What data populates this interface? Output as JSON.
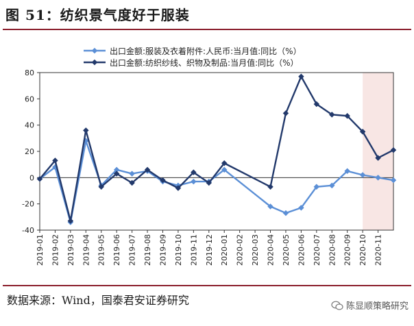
{
  "header": {
    "title": "图 51：纺织景气度好于服装"
  },
  "footer": {
    "source": "数据来源：Wind，国泰君安证券研究",
    "watermark": "陈显顺策略研究"
  },
  "colors": {
    "series1": "#5b8fd6",
    "series2": "#22396b",
    "forecast_shade": "#f8e6e4",
    "rule": "#8a1d2b"
  },
  "chart_data": {
    "type": "line",
    "title": "",
    "xlabel": "",
    "ylabel": "",
    "ylim": [
      -40,
      80
    ],
    "yticks": [
      -40,
      -20,
      0,
      20,
      40,
      60,
      80
    ],
    "grid": false,
    "legend_position": "top",
    "shaded_region": [
      "2020-10",
      "2020-12"
    ],
    "categories": [
      "2019-01",
      "2019-02",
      "2019-03",
      "2019-04",
      "2019-05",
      "2019-06",
      "2019-07",
      "2019-08",
      "2019-09",
      "2019-10",
      "2019-11",
      "2019-12",
      "2020-01",
      "2020-02",
      "2020-03",
      "2020-04",
      "2020-05",
      "2020-06",
      "2020-07",
      "2020-08",
      "2020-09",
      "2020-10",
      "2020-11",
      "2020-12"
    ],
    "tick_labels": [
      "2019-01",
      "2019-02",
      "2019-03",
      "2019-04",
      "2019-05",
      "2019-06",
      "2019-07",
      "2019-08",
      "2019-09",
      "2019-10",
      "2019-11",
      "2019-12",
      "2020-01",
      "2020-02",
      "2020-03",
      "2020-04",
      "2020-05",
      "2020-06",
      "2020-07",
      "2020-08",
      "2020-09",
      "2020-10",
      "2020-11"
    ],
    "series": [
      {
        "name": "出口金额:服装及衣着附件:人民币:当月值:同比（%）",
        "x": [
          "2019-01",
          "2019-02",
          "2019-03",
          "2019-04",
          "2019-05",
          "2019-06",
          "2019-07",
          "2019-08",
          "2019-09",
          "2019-10",
          "2019-11",
          "2019-12",
          "2020-01",
          "2020-04",
          "2020-05",
          "2020-06",
          "2020-07",
          "2020-08",
          "2020-09",
          "2020-10",
          "2020-11",
          "2020-12"
        ],
        "values": [
          -1,
          8,
          -34,
          28,
          -6,
          6,
          3,
          5,
          -3,
          -6,
          -3,
          -3,
          6,
          -22,
          -27,
          -23,
          -7,
          -6,
          5,
          2,
          0,
          -2
        ]
      },
      {
        "name": "出口金额:纺织纱线、织物及制品:当月值:同比（%）",
        "x": [
          "2019-01",
          "2019-02",
          "2019-03",
          "2019-04",
          "2019-05",
          "2019-06",
          "2019-07",
          "2019-08",
          "2019-09",
          "2019-10",
          "2019-11",
          "2019-12",
          "2020-01",
          "2020-04",
          "2020-05",
          "2020-06",
          "2020-07",
          "2020-08",
          "2020-09",
          "2020-10",
          "2020-11",
          "2020-12"
        ],
        "values": [
          -1,
          13,
          -33,
          36,
          -7,
          3,
          -4,
          6,
          -2,
          -8,
          4,
          -4,
          11,
          -7,
          49,
          77,
          56,
          48,
          47,
          35,
          15,
          21
        ]
      }
    ]
  }
}
